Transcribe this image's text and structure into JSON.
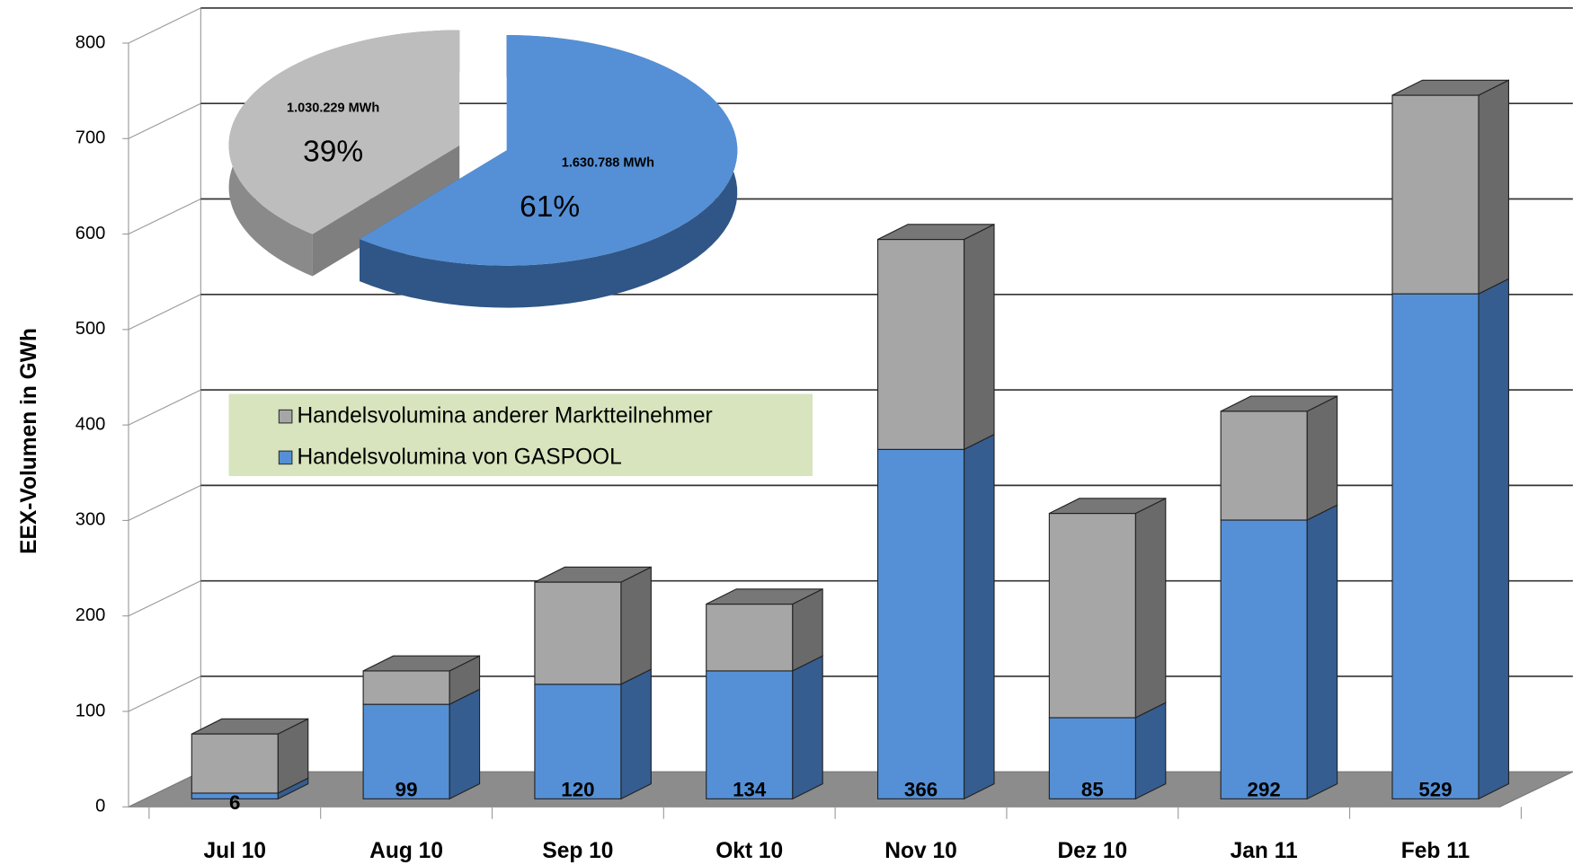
{
  "chart_data": [
    {
      "type": "bar3d",
      "y_label": "EEX-Volumen in GWh",
      "categories": [
        "Jul 10",
        "Aug 10",
        "Sep 10",
        "Okt 10",
        "Nov 10",
        "Dez 10",
        "Jan 11",
        "Feb 11"
      ],
      "series": [
        {
          "name": "Handelsvolumina von GASPOOL",
          "color": "#5590d6",
          "side": "#365d8f",
          "values": [
            6,
            99,
            120,
            134,
            366,
            85,
            292,
            529
          ]
        },
        {
          "name": "Handelsvolumina anderer Marktteilnehmer",
          "color": "#a6a6a6",
          "side": "#6a6a6a",
          "values": [
            62,
            35,
            107,
            70,
            220,
            214,
            114,
            208
          ]
        }
      ],
      "stacked": true,
      "ylim": [
        0,
        800
      ],
      "yticks": [
        0,
        100,
        200,
        300,
        400,
        500,
        600,
        700,
        800
      ],
      "grid": true,
      "legend": "upper-left"
    },
    {
      "type": "pie3d",
      "values": [
        61,
        39
      ],
      "value_labels": [
        "61%",
        "39%"
      ],
      "amount_labels": [
        "1.630.788 MWh",
        "1.030.229 MWh"
      ],
      "colors": [
        "#5590d6",
        "#bdbdbd"
      ],
      "sides": [
        "#2f5686",
        "#8a8a8a"
      ]
    }
  ]
}
